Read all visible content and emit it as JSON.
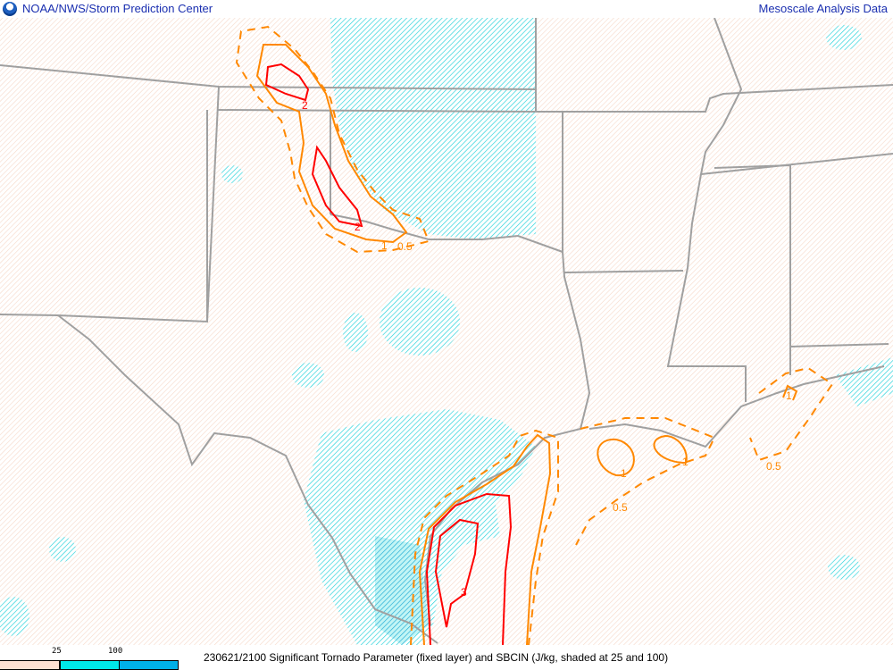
{
  "header": {
    "title_left": "NOAA/NWS/Storm Prediction Center",
    "title_right": "Mesoscale Analysis Data",
    "logo": "noaa-logo"
  },
  "footer": {
    "caption": "230621/2100 Significant Tornado Parameter (fixed layer) and SBCIN (J/kg, shaded at 25 and 100)"
  },
  "legend": {
    "thresholds": [
      "25",
      "100"
    ],
    "colors": [
      "#fce0d2",
      "#00eaea",
      "#00b0e8"
    ]
  },
  "map": {
    "contour_colors": {
      "stp_low": "#ff8800",
      "stp_high": "#ff0000",
      "borders": "#a0a0a0"
    },
    "contour_labels": [
      "2",
      "2",
      "1",
      "0.5",
      "3",
      "1",
      "1",
      "0.5",
      "0.5",
      "1"
    ]
  }
}
